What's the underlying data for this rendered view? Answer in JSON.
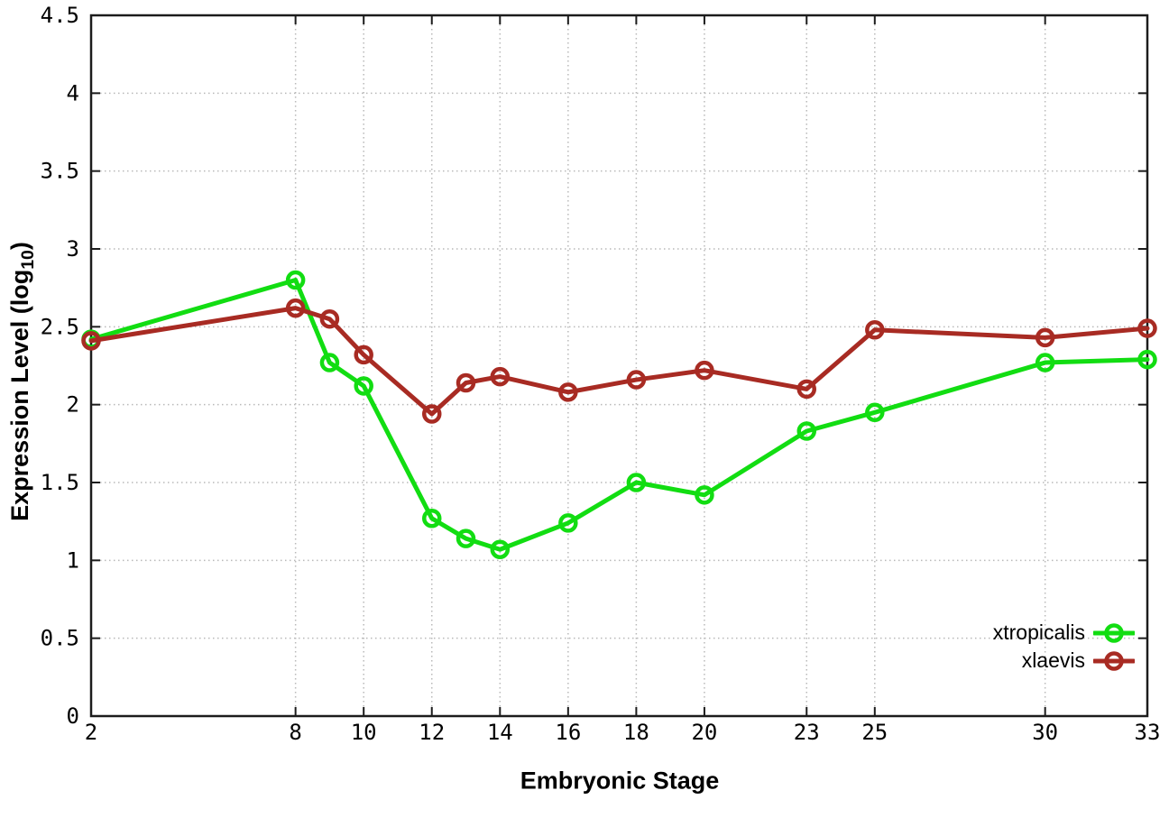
{
  "chart_data": {
    "type": "line",
    "xlabel": "Embryonic Stage",
    "ylabel": "Expression Level (log10)",
    "ylabel_parts": {
      "pre": "Expression Level (log",
      "sub": "10",
      "post": ")"
    },
    "x": [
      2,
      8,
      9,
      10,
      12,
      13,
      14,
      16,
      18,
      20,
      23,
      25,
      30,
      33
    ],
    "series": [
      {
        "name": "xtropicalis",
        "color": "#12dd12",
        "values": [
          2.42,
          2.8,
          2.27,
          2.12,
          1.27,
          1.14,
          1.07,
          1.24,
          1.5,
          1.42,
          1.83,
          1.95,
          2.27,
          2.29
        ]
      },
      {
        "name": "xlaevis",
        "color": "#a82b23",
        "values": [
          2.41,
          2.62,
          2.55,
          2.32,
          1.94,
          2.14,
          2.18,
          2.08,
          2.16,
          2.22,
          2.1,
          2.48,
          2.43,
          2.49
        ]
      }
    ],
    "x_ticks": [
      2,
      8,
      10,
      12,
      14,
      16,
      18,
      20,
      23,
      25,
      30,
      33
    ],
    "y_ticks": [
      0,
      0.5,
      1,
      1.5,
      2,
      2.5,
      3,
      3.5,
      4,
      4.5
    ],
    "xlim": [
      2,
      33
    ],
    "ylim": [
      0,
      4.5
    ],
    "grid": true,
    "legend_position": "inside-bottom-right",
    "grid_color": "#b9b9b9",
    "axis_color": "#1c1c1c"
  }
}
